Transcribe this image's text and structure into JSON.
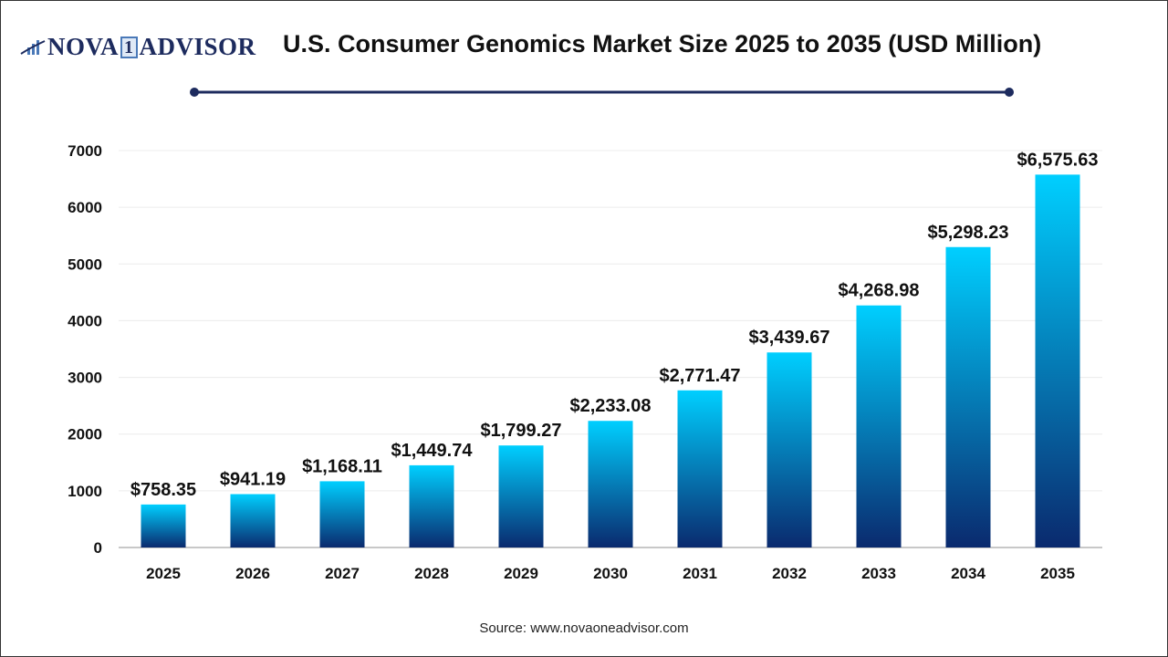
{
  "logo": {
    "text_left": "NOVA",
    "text_one": "1",
    "text_right": "ADVISOR",
    "icon": "bar-chart-swoosh-icon"
  },
  "title": "U.S. Consumer Genomics Market Size 2025 to 2035 (USD Million)",
  "source": "Source: www.novaoneadvisor.com",
  "colors": {
    "bar_top": "#00cfff",
    "bar_bottom": "#0a2a6e",
    "title_rule": "#1d2b5e"
  },
  "chart_data": {
    "type": "bar",
    "title": "U.S. Consumer Genomics Market Size 2025 to 2035 (USD Million)",
    "xlabel": "",
    "ylabel": "",
    "categories": [
      "2025",
      "2026",
      "2027",
      "2028",
      "2029",
      "2030",
      "2031",
      "2032",
      "2033",
      "2034",
      "2035"
    ],
    "values": [
      758.35,
      941.19,
      1168.11,
      1449.74,
      1799.27,
      2233.08,
      2771.47,
      3439.67,
      4268.98,
      5298.23,
      6575.63
    ],
    "data_labels": [
      "$758.35",
      "$941.19",
      "$1,168.11",
      "$1,449.74",
      "$1,799.27",
      "$2,233.08",
      "$2,771.47",
      "$3,439.67",
      "$4,268.98",
      "$5,298.23",
      "$6,575.63"
    ],
    "ylim": [
      0,
      7000
    ],
    "yticks": [
      "0",
      "1000",
      "2000",
      "3000",
      "4000",
      "5000",
      "6000",
      "7000"
    ],
    "grid": true,
    "legend": "none"
  }
}
